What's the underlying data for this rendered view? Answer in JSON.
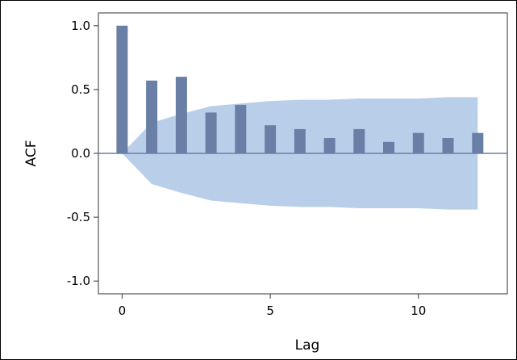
{
  "chart_data": {
    "type": "bar",
    "x": [
      0,
      1,
      2,
      3,
      4,
      5,
      6,
      7,
      8,
      9,
      10,
      11,
      12
    ],
    "values": [
      1.0,
      0.57,
      0.6,
      0.32,
      0.38,
      0.22,
      0.19,
      0.12,
      0.19,
      0.09,
      0.16,
      0.12,
      0.16
    ],
    "confidence_band": {
      "x": [
        0,
        1,
        2,
        3,
        4,
        5,
        6,
        7,
        8,
        9,
        10,
        11,
        12
      ],
      "upper": [
        0.0,
        0.24,
        0.31,
        0.37,
        0.39,
        0.41,
        0.42,
        0.42,
        0.43,
        0.43,
        0.43,
        0.44,
        0.44
      ]
    },
    "xlabel": "Lag",
    "ylabel": "ACF",
    "xlim": [
      -0.8,
      13.0
    ],
    "ylim": [
      -1.1,
      1.1
    ],
    "xticks": [
      0,
      5,
      10
    ],
    "xtick_labels": [
      "0",
      "5",
      "10"
    ],
    "yticks": [
      1.0,
      0.5,
      0.0,
      -0.5,
      -1.0
    ],
    "ytick_labels": [
      "1.0",
      "0.5",
      "0.0",
      "-0.5",
      "-1.0"
    ],
    "grid": false,
    "colors": {
      "bars": "#6a7fa6",
      "band": "#b9cfe9",
      "zero_line": "#6a7fa6",
      "axes": "#333333"
    }
  }
}
